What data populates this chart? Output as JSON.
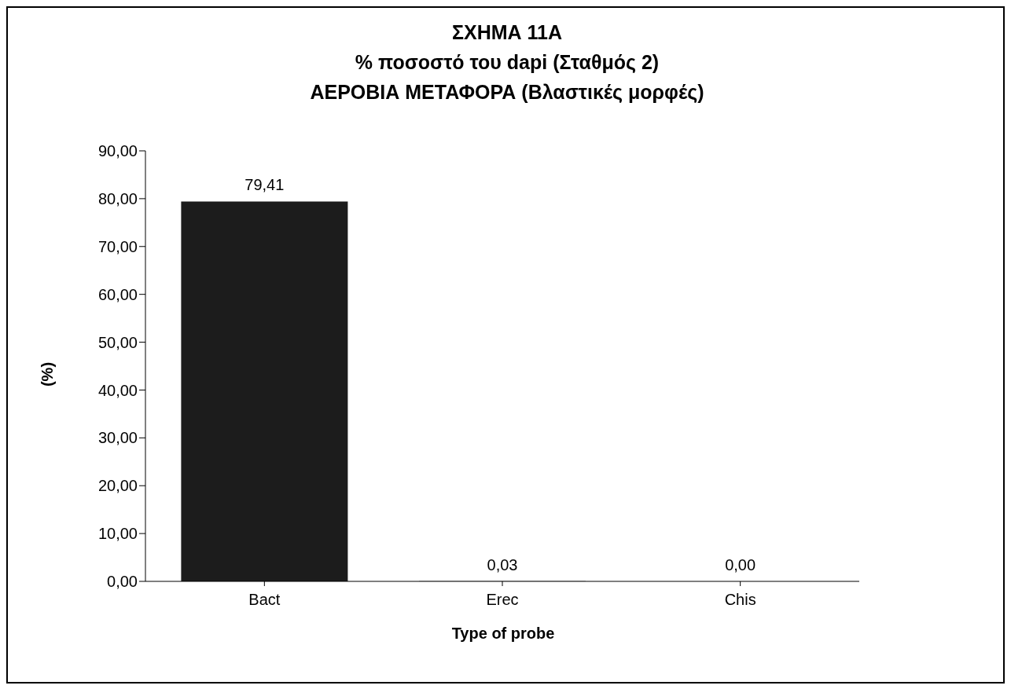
{
  "chart_data": {
    "type": "bar",
    "title": "ΣΧΗΜΑ 11Α\n% ποσοστό του dapi (Σταθμός 2)\nΑΕΡΟΒΙΑ ΜΕΤΑΦΟΡΑ (Βλαστικές μορφές)",
    "xlabel": "Type of probe",
    "ylabel": "(%)",
    "categories": [
      "Bact",
      "Erec",
      "Chis"
    ],
    "values": [
      79.41,
      0.03,
      0.0
    ],
    "value_labels": [
      "79,41",
      "0,03",
      "0,00"
    ],
    "color": "#1c1c1c",
    "ylim": [
      0,
      90
    ],
    "yticks": [
      {
        "value": 0,
        "label": "0,00"
      },
      {
        "value": 10,
        "label": "10,00"
      },
      {
        "value": 20,
        "label": "20,00"
      },
      {
        "value": 30,
        "label": "30,00"
      },
      {
        "value": 40,
        "label": "40,00"
      },
      {
        "value": 50,
        "label": "50,00"
      },
      {
        "value": 60,
        "label": "60,00"
      },
      {
        "value": 70,
        "label": "70,00"
      },
      {
        "value": 80,
        "label": "80,00"
      },
      {
        "value": 90,
        "label": "90,00"
      }
    ],
    "grid": false,
    "legend": false
  }
}
